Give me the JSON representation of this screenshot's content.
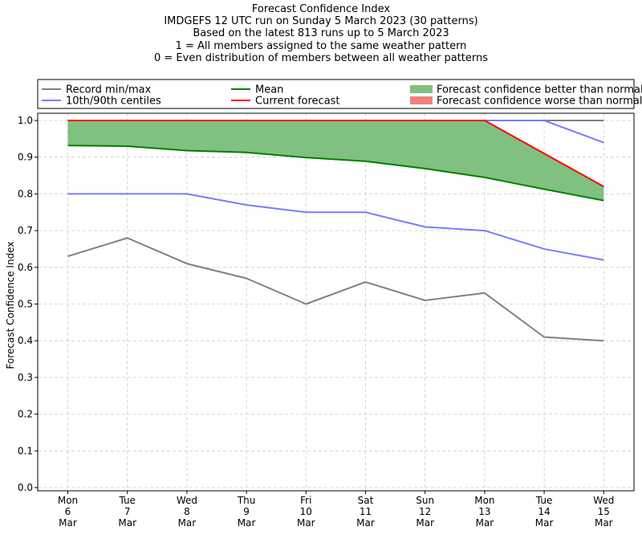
{
  "chart_data": {
    "type": "line",
    "title": "Forecast Confidence Index",
    "subtitle_lines": [
      "IMDGEFS 12 UTC run on Sunday 5 March 2023 (30 patterns)",
      "Based on the latest 813 runs up to 5 March 2023",
      "1 = All members assigned to the same weather pattern",
      "0 = Even distribution of members between all weather patterns"
    ],
    "xlabel": "",
    "ylabel": "Forecast Confidence Index",
    "ylim": [
      0,
      1.0
    ],
    "yticks": [
      "0.0",
      "0.1",
      "0.2",
      "0.3",
      "0.4",
      "0.5",
      "0.6",
      "0.7",
      "0.8",
      "0.9",
      "1.0"
    ],
    "grid": true,
    "legend_position": "top",
    "categories": [
      [
        "Mon",
        "6",
        "Mar"
      ],
      [
        "Tue",
        "7",
        "Mar"
      ],
      [
        "Wed",
        "8",
        "Mar"
      ],
      [
        "Thu",
        "9",
        "Mar"
      ],
      [
        "Fri",
        "10",
        "Mar"
      ],
      [
        "Sat",
        "11",
        "Mar"
      ],
      [
        "Sun",
        "12",
        "Mar"
      ],
      [
        "Mon",
        "13",
        "Mar"
      ],
      [
        "Tue",
        "14",
        "Mar"
      ],
      [
        "Wed",
        "15",
        "Mar"
      ]
    ],
    "legend": [
      {
        "label": "Record min/max",
        "kind": "line",
        "color": "#808080"
      },
      {
        "label": "Mean",
        "kind": "line",
        "color": "#008000"
      },
      {
        "label": "Forecast confidence better than normal",
        "kind": "patch",
        "color": "#80c080"
      },
      {
        "label": "10th/90th centiles",
        "kind": "line",
        "color": "#7b7bff"
      },
      {
        "label": "Current forecast",
        "kind": "line",
        "color": "#ff0000"
      },
      {
        "label": "Forecast confidence worse than normal",
        "kind": "patch",
        "color": "#f08080"
      }
    ],
    "series": [
      {
        "name": "Record min/max",
        "role": "record_min",
        "color": "#808080",
        "values": [
          0.63,
          0.68,
          0.61,
          0.57,
          0.5,
          0.56,
          0.51,
          0.53,
          0.41,
          0.4
        ]
      },
      {
        "name": "Record min/max",
        "role": "record_max",
        "color": "#808080",
        "values": [
          1.0,
          1.0,
          1.0,
          1.0,
          1.0,
          1.0,
          1.0,
          1.0,
          1.0,
          1.0
        ]
      },
      {
        "name": "10th/90th centiles",
        "role": "p10",
        "color": "#7b7bff",
        "values": [
          0.8,
          0.8,
          0.8,
          0.77,
          0.75,
          0.75,
          0.71,
          0.7,
          0.65,
          0.62
        ]
      },
      {
        "name": "10th/90th centiles",
        "role": "p90",
        "color": "#7b7bff",
        "values": [
          1.0,
          1.0,
          1.0,
          1.0,
          1.0,
          1.0,
          1.0,
          1.0,
          1.0,
          0.94
        ]
      },
      {
        "name": "Mean",
        "role": "mean",
        "color": "#008000",
        "values": [
          0.932,
          0.93,
          0.918,
          0.913,
          0.899,
          0.889,
          0.869,
          0.845,
          0.813,
          0.782
        ]
      },
      {
        "name": "Current forecast",
        "role": "current",
        "color": "#ff0000",
        "values": [
          1.0,
          1.0,
          1.0,
          1.0,
          1.0,
          1.0,
          1.0,
          1.0,
          0.91,
          0.82
        ]
      }
    ]
  }
}
